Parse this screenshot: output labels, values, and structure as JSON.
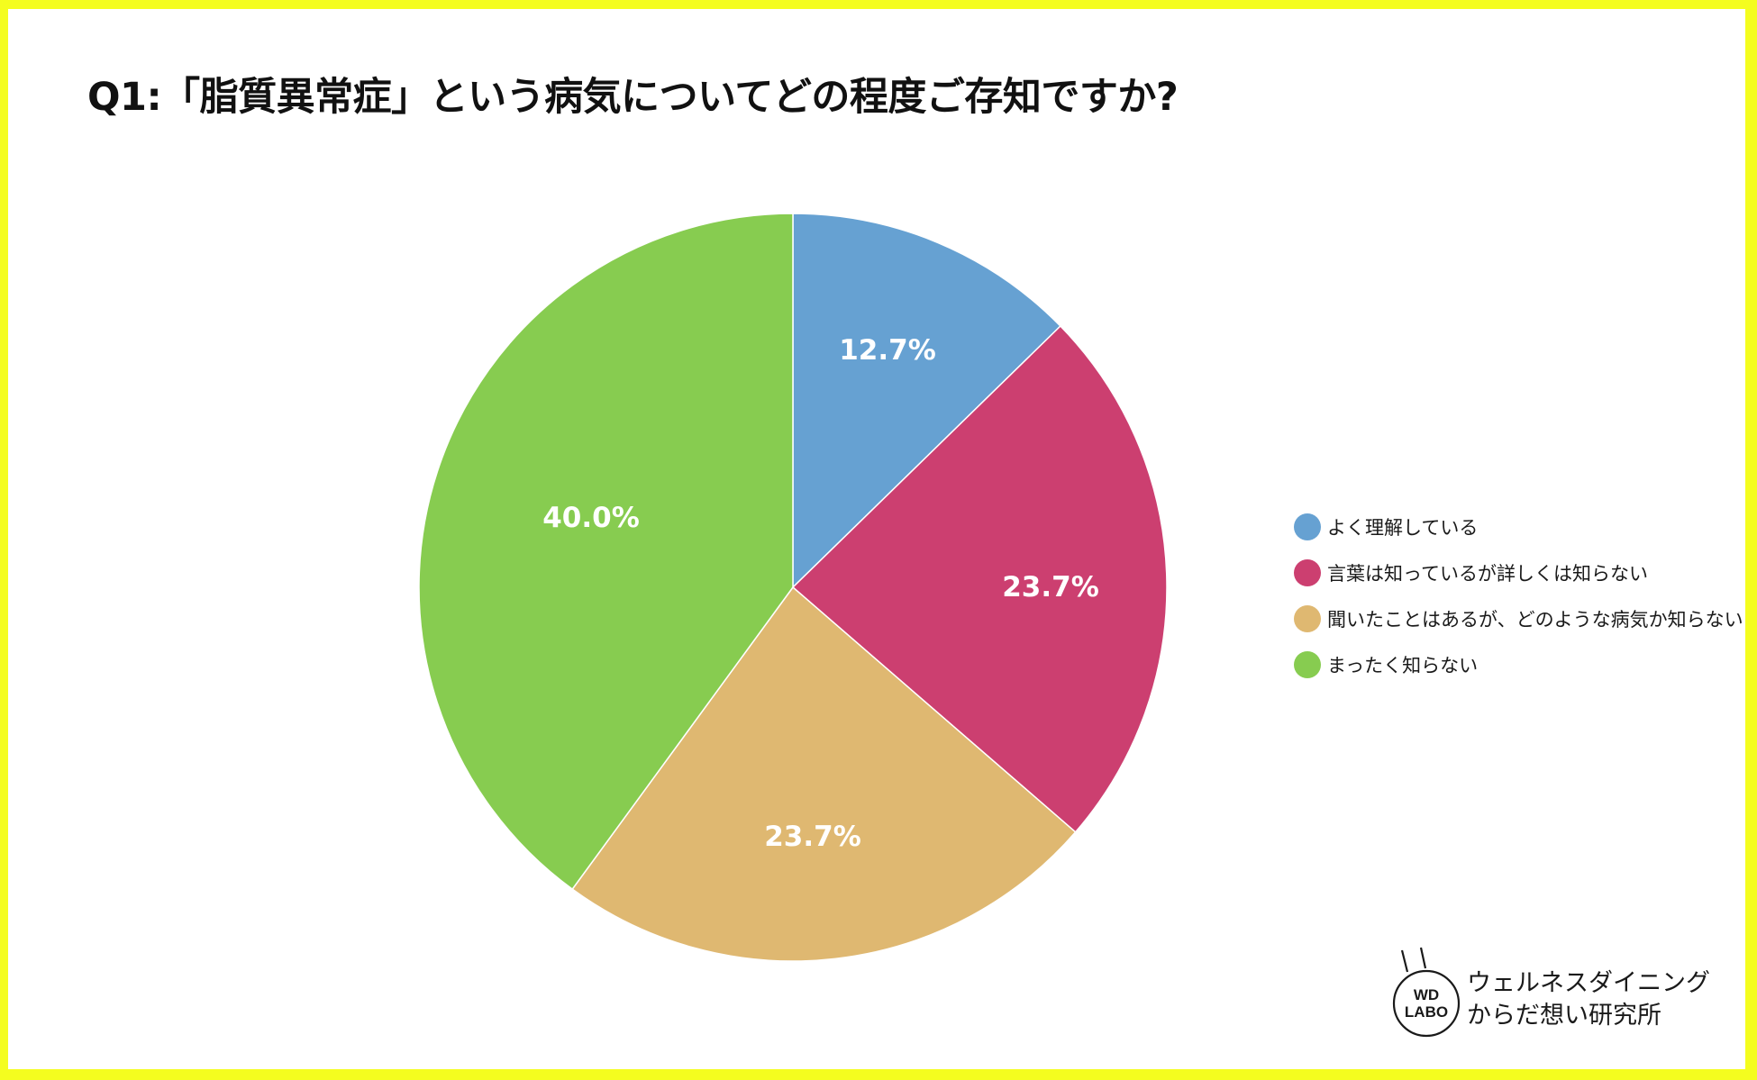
{
  "title": "Q1:「脂質異常症」という病気についてどの程度ご存知ですか?",
  "colors": {
    "frame": "#f4fd1f",
    "blue": "#66a1d2",
    "red": "#cc3f70",
    "tan": "#dfb871",
    "green": "#87cc50"
  },
  "legend": {
    "items": [
      {
        "label": "よく理解している",
        "color": "#66a1d2"
      },
      {
        "label": "言葉は知っているが詳しくは知らない",
        "color": "#cc3f70"
      },
      {
        "label": "聞いたことはあるが、どのような病気か知らない",
        "color": "#dfb871"
      },
      {
        "label": "まったく知らない",
        "color": "#87cc50"
      }
    ]
  },
  "slice_labels": [
    "12.7%",
    "23.7%",
    "23.7%",
    "40.0%"
  ],
  "logo": {
    "mark_line1": "WD",
    "mark_line2": "LABO",
    "name_line1": "ウェルネスダイニング",
    "name_line2": "からだ想い研究所"
  },
  "chart_data": {
    "type": "pie",
    "title": "Q1:「脂質異常症」という病気についてどの程度ご存知ですか?",
    "categories": [
      "よく理解している",
      "言葉は知っているが詳しくは知らない",
      "聞いたことはあるが、どのような病気か知らない",
      "まったく知らない"
    ],
    "values": [
      12.7,
      23.7,
      23.7,
      40.0
    ],
    "unit": "%",
    "colors": [
      "#66a1d2",
      "#cc3f70",
      "#dfb871",
      "#87cc50"
    ],
    "start_angle": "12 o'clock, clockwise",
    "data_labels": [
      "12.7%",
      "23.7%",
      "23.7%",
      "40.0%"
    ],
    "legend_position": "right",
    "grid": false
  }
}
